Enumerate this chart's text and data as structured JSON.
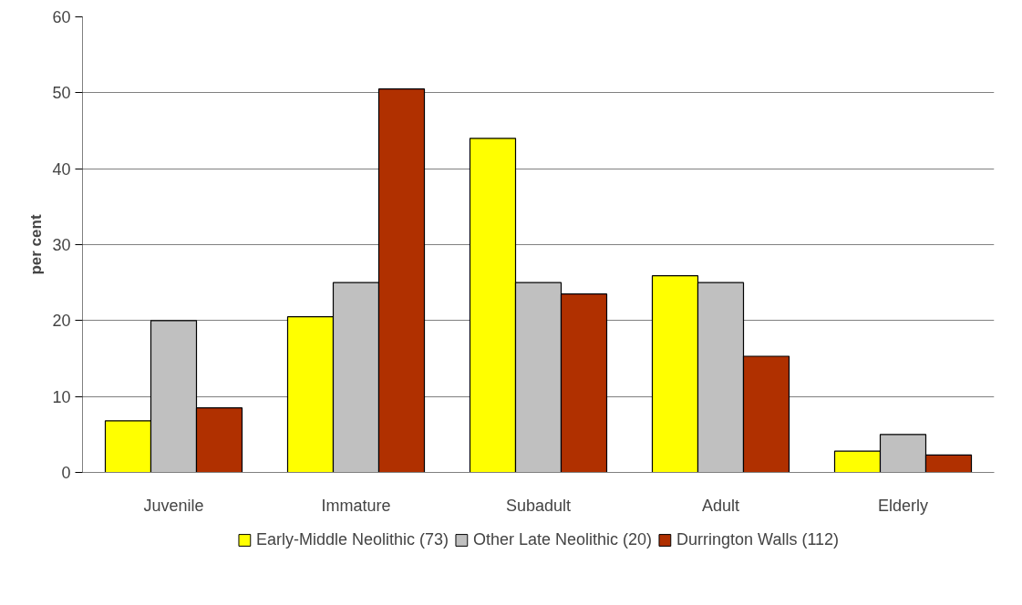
{
  "chart_data": {
    "type": "bar",
    "ylabel": "per cent",
    "categories": [
      "Juvenile",
      "Immature",
      "Subadult",
      "Adult",
      "Elderly"
    ],
    "series": [
      {
        "name": "Early-Middle Neolithic (73)",
        "color": "#ffff00",
        "values": [
          6.8,
          20.5,
          44.0,
          25.9,
          2.8
        ]
      },
      {
        "name": "Other Late Neolithic (20)",
        "color": "#c0c0c0",
        "values": [
          20.0,
          25.0,
          25.0,
          25.0,
          5.0
        ]
      },
      {
        "name": "Durrington Walls (112)",
        "color": "#b03000",
        "values": [
          8.5,
          50.5,
          23.5,
          15.3,
          2.3
        ]
      }
    ],
    "ylim": [
      0,
      60
    ],
    "yticks": [
      0,
      10,
      20,
      30,
      40,
      50,
      60
    ],
    "grid": "y",
    "legend": "bottom"
  }
}
